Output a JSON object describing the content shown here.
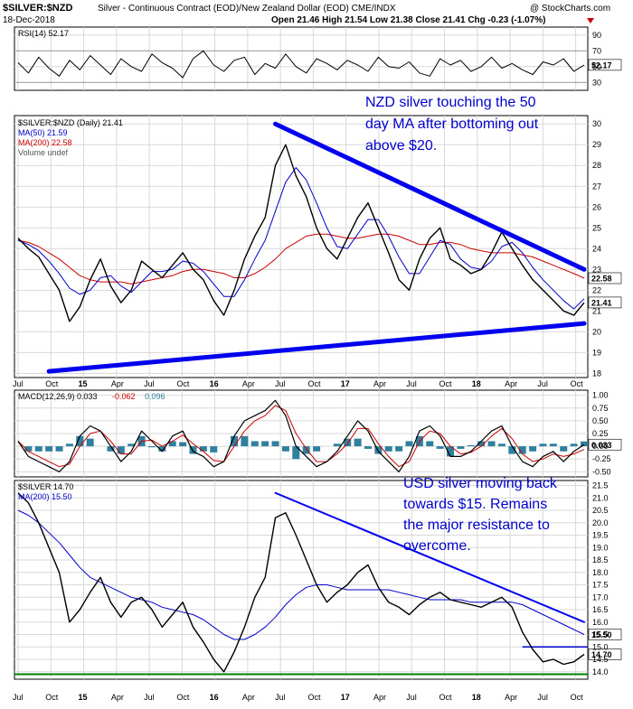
{
  "header": {
    "symbol": "$SILVER:$NZD",
    "description": "Silver - Continuous Contract (EOD)/New Zealand Dollar (EOD) CME/INDX",
    "watermark": "@ StockCharts.com",
    "date": "18-Dec-2018",
    "quote": "Open 21.46  High 21.54  Low 21.38  Close 21.41  Chg -0.23 (-1.07%)"
  },
  "colors": {
    "price": "#000000",
    "ma50": "#0000cc",
    "ma200": "#cc0000",
    "trendline": "#0000ee",
    "support": "#008000",
    "macd_hist": "#2f7f9f",
    "annotation": "#0000cc",
    "down_arrow": "#cc0000"
  },
  "x_labels": [
    "Jul",
    "Oct",
    "15",
    "Apr",
    "Jul",
    "Oct",
    "16",
    "Apr",
    "Jul",
    "Oct",
    "17",
    "Apr",
    "Jul",
    "Oct",
    "18",
    "Apr",
    "Jul",
    "Oct"
  ],
  "chart_data": [
    {
      "type": "line",
      "panel": "RSI",
      "legend": "RSI(14) 52.17",
      "y_ticks": [
        30,
        50,
        70,
        90
      ],
      "ylim": [
        20,
        100
      ],
      "last_value": "52.17",
      "series": [
        {
          "name": "RSI(14)",
          "values": [
            55,
            42,
            62,
            48,
            38,
            58,
            46,
            64,
            52,
            40,
            60,
            50,
            44,
            66,
            55,
            48,
            36,
            60,
            70,
            52,
            44,
            58,
            62,
            40,
            54,
            48,
            66,
            50,
            42,
            60,
            54,
            46,
            58,
            52,
            44,
            62,
            50,
            48,
            56,
            42,
            38,
            60,
            52,
            58,
            44,
            50,
            62,
            48,
            54,
            46,
            40,
            56,
            52,
            60,
            44,
            52
          ]
        }
      ]
    },
    {
      "type": "line",
      "panel": "price",
      "legend": [
        "$SILVER:$NZD (Daily) 21.41",
        "MA(50) 21.59",
        "MA(200) 22.58",
        "Volume undef"
      ],
      "y_ticks": [
        18,
        19,
        20,
        21,
        22,
        23,
        24,
        25,
        26,
        27,
        28,
        29,
        30
      ],
      "ylim": [
        17.8,
        30.4
      ],
      "price_label": "21.41",
      "ma50_label": "21.59",
      "ma200_label": "22.58",
      "annotation": [
        "NZD silver touching the 50",
        "day MA after bottoming out",
        "above $20."
      ],
      "x": [
        0,
        1,
        2,
        3,
        4,
        5,
        6,
        7,
        8,
        9,
        10,
        11,
        12,
        13,
        14,
        15,
        16,
        17,
        18,
        19,
        20,
        21,
        22,
        23,
        24,
        25,
        26,
        27,
        28,
        29,
        30,
        31,
        32,
        33,
        34,
        35,
        36,
        37,
        38,
        39,
        40,
        41,
        42,
        43,
        44,
        45,
        46,
        47,
        48,
        49,
        50,
        51,
        52,
        53,
        54,
        55
      ],
      "series": [
        {
          "name": "$SILVER:$NZD",
          "values": [
            24.5,
            24.0,
            23.6,
            22.8,
            22.0,
            20.5,
            21.2,
            22.5,
            23.5,
            22.2,
            21.4,
            22.0,
            23.4,
            23.0,
            22.6,
            23.2,
            23.8,
            23.0,
            22.5,
            21.5,
            20.8,
            22.0,
            23.5,
            24.6,
            25.5,
            28.0,
            29.0,
            27.5,
            26.5,
            25.0,
            24.0,
            23.5,
            24.5,
            25.5,
            26.2,
            25.0,
            23.8,
            22.5,
            22.0,
            23.5,
            24.5,
            25.0,
            23.5,
            23.2,
            22.8,
            23.0,
            23.8,
            24.8,
            24.0,
            23.2,
            22.5,
            22.0,
            21.5,
            21.0,
            20.8,
            21.4
          ]
        },
        {
          "name": "MA(50)",
          "values": [
            24.4,
            24.2,
            23.9,
            23.4,
            22.8,
            22.1,
            21.8,
            22.0,
            22.6,
            22.7,
            22.2,
            21.9,
            22.4,
            22.9,
            22.9,
            23.0,
            23.4,
            23.3,
            22.9,
            22.3,
            21.7,
            21.7,
            22.5,
            23.5,
            24.4,
            25.8,
            27.2,
            27.9,
            27.3,
            26.2,
            25.0,
            24.1,
            24.0,
            24.7,
            25.4,
            25.4,
            24.6,
            23.6,
            22.8,
            22.8,
            23.6,
            24.4,
            24.2,
            23.5,
            23.1,
            23.0,
            23.4,
            24.1,
            24.3,
            23.8,
            23.1,
            22.5,
            22.0,
            21.5,
            21.1,
            21.59
          ]
        },
        {
          "name": "MA(200)",
          "values": [
            24.4,
            24.3,
            24.1,
            23.8,
            23.5,
            23.1,
            22.7,
            22.5,
            22.4,
            22.4,
            22.4,
            22.3,
            22.4,
            22.5,
            22.6,
            22.7,
            22.9,
            23.0,
            23.0,
            22.9,
            22.8,
            22.6,
            22.6,
            22.8,
            23.1,
            23.5,
            24.0,
            24.3,
            24.6,
            24.7,
            24.7,
            24.6,
            24.5,
            24.5,
            24.6,
            24.7,
            24.7,
            24.6,
            24.4,
            24.2,
            24.2,
            24.3,
            24.3,
            24.2,
            24.0,
            23.9,
            23.8,
            23.8,
            23.8,
            23.7,
            23.6,
            23.4,
            23.2,
            23.0,
            22.8,
            22.58
          ]
        }
      ],
      "trendlines": [
        {
          "name": "upper",
          "points": [
            [
              25,
              30.0
            ],
            [
              55,
              23.0
            ]
          ]
        },
        {
          "name": "lower",
          "points": [
            [
              3,
              18.1
            ],
            [
              55,
              20.4
            ]
          ]
        }
      ]
    },
    {
      "type": "line",
      "panel": "MACD",
      "legend": [
        "MACD(12,26,9) 0.033",
        "-0.062",
        "0.096"
      ],
      "y_ticks": [
        -0.5,
        -0.25,
        0.0,
        0.25,
        0.5,
        0.75,
        1.0
      ],
      "ylim": [
        -0.6,
        1.1
      ],
      "last_value": "0.033",
      "series": [
        {
          "name": "MACD",
          "values": [
            0.1,
            -0.2,
            -0.3,
            -0.4,
            -0.5,
            -0.3,
            0.2,
            0.4,
            0.3,
            0.0,
            -0.3,
            -0.1,
            0.3,
            0.1,
            -0.1,
            0.2,
            0.3,
            -0.1,
            -0.2,
            -0.4,
            -0.3,
            0.2,
            0.5,
            0.6,
            0.7,
            0.9,
            0.6,
            0.0,
            -0.2,
            -0.4,
            -0.3,
            -0.1,
            0.2,
            0.5,
            0.3,
            -0.1,
            -0.3,
            -0.5,
            -0.2,
            0.3,
            0.4,
            0.2,
            -0.2,
            -0.2,
            -0.1,
            0.1,
            0.3,
            0.4,
            0.0,
            -0.3,
            -0.4,
            -0.2,
            -0.1,
            -0.3,
            -0.1,
            0.033
          ]
        },
        {
          "name": "Signal",
          "values": [
            0.1,
            -0.1,
            -0.2,
            -0.3,
            -0.4,
            -0.35,
            0.0,
            0.25,
            0.3,
            0.1,
            -0.15,
            -0.15,
            0.1,
            0.12,
            0.0,
            0.1,
            0.22,
            0.05,
            -0.1,
            -0.28,
            -0.3,
            0.0,
            0.3,
            0.5,
            0.6,
            0.8,
            0.7,
            0.25,
            -0.05,
            -0.3,
            -0.3,
            -0.15,
            0.05,
            0.35,
            0.35,
            0.05,
            -0.2,
            -0.4,
            -0.3,
            0.1,
            0.3,
            0.25,
            0.0,
            -0.15,
            -0.12,
            0.0,
            0.2,
            0.35,
            0.15,
            -0.15,
            -0.3,
            -0.25,
            -0.15,
            -0.2,
            -0.15,
            -0.062
          ]
        }
      ]
    },
    {
      "type": "line",
      "panel": "USD silver",
      "legend": [
        "$SILVER 14.70",
        "MA(200) 15.50"
      ],
      "y_ticks": [
        14.0,
        14.5,
        15.0,
        15.5,
        16.0,
        16.5,
        17.0,
        17.5,
        18.0,
        18.5,
        19.0,
        19.5,
        20.0,
        20.5,
        21.0,
        21.5
      ],
      "ylim": [
        13.7,
        21.7
      ],
      "price_label": "14.70",
      "ma200_label": "15.50",
      "annotation": [
        "USD silver moving back",
        "towards $15. Remains",
        "the major resistance to",
        "overcome."
      ],
      "series": [
        {
          "name": "$SILVER",
          "values": [
            21.2,
            20.8,
            20.0,
            19.0,
            18.0,
            16.0,
            16.5,
            17.2,
            17.8,
            16.8,
            16.2,
            16.8,
            17.0,
            16.5,
            15.8,
            16.3,
            16.8,
            15.8,
            15.2,
            14.5,
            14.0,
            14.8,
            15.8,
            17.0,
            17.8,
            20.2,
            20.4,
            19.5,
            18.5,
            17.5,
            16.8,
            17.2,
            17.5,
            18.0,
            18.3,
            17.4,
            16.8,
            16.6,
            16.3,
            16.7,
            17.0,
            17.2,
            16.9,
            16.8,
            16.7,
            16.6,
            16.8,
            17.0,
            16.6,
            15.6,
            14.9,
            14.4,
            14.5,
            14.3,
            14.4,
            14.7
          ]
        },
        {
          "name": "MA(200)",
          "values": [
            20.5,
            20.3,
            20.0,
            19.6,
            19.2,
            18.7,
            18.2,
            17.8,
            17.6,
            17.4,
            17.2,
            17.0,
            16.9,
            16.8,
            16.6,
            16.5,
            16.4,
            16.3,
            16.1,
            15.8,
            15.5,
            15.3,
            15.3,
            15.5,
            15.8,
            16.2,
            16.7,
            17.1,
            17.4,
            17.5,
            17.5,
            17.4,
            17.3,
            17.3,
            17.3,
            17.3,
            17.3,
            17.2,
            17.1,
            17.0,
            16.9,
            16.9,
            16.9,
            16.9,
            16.8,
            16.8,
            16.8,
            16.8,
            16.8,
            16.7,
            16.5,
            16.3,
            16.1,
            15.9,
            15.7,
            15.5
          ]
        }
      ],
      "trendline": {
        "points": [
          [
            25,
            21.2
          ],
          [
            55,
            16.0
          ]
        ]
      },
      "support": 13.9,
      "resistance": 15.0
    }
  ]
}
